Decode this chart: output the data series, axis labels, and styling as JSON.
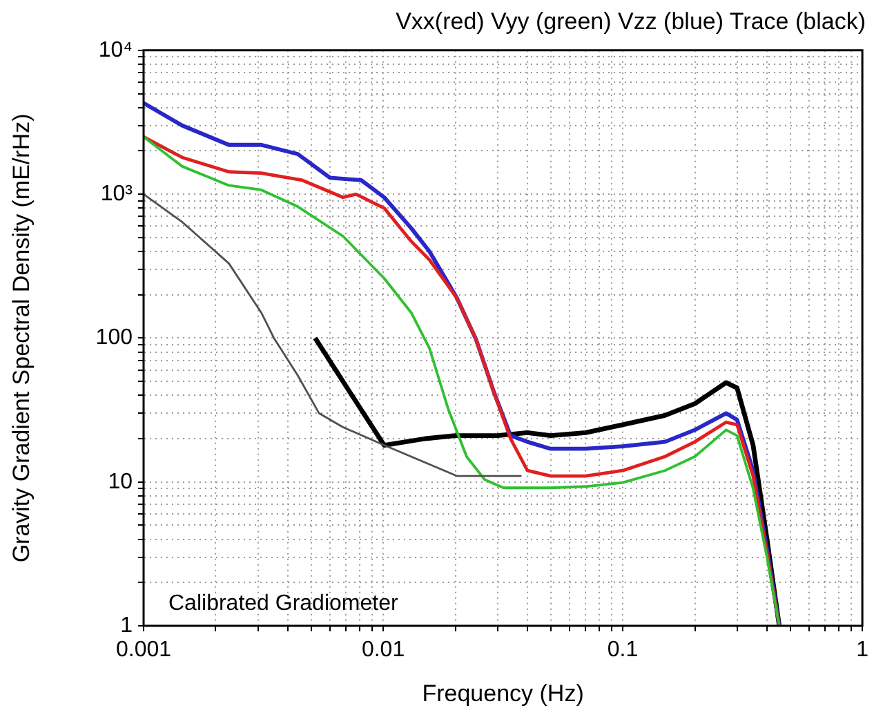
{
  "chart_data": {
    "type": "line",
    "title": "Vxx(red) Vyy (green) Vzz (blue) Trace (black)",
    "xlabel": "Frequency (Hz)",
    "ylabel": "Gravity Gradient Spectral Density (mE/rHz)",
    "annotations": [
      "Calibrated Gradiometer"
    ],
    "log": "xy",
    "grid": true,
    "marker": "none",
    "line_style": "solid",
    "xlim": [
      0.001,
      1
    ],
    "ylim": [
      1,
      10000
    ],
    "xticks": [
      0.001,
      {
        "value": 0.002,
        "label": null
      },
      {
        "value": 0.003,
        "label": null
      },
      {
        "value": 0.004,
        "label": null
      },
      {
        "value": 0.005,
        "label": null
      },
      {
        "value": 0.006,
        "label": null
      },
      {
        "value": 0.007,
        "label": null
      },
      {
        "value": 0.008,
        "label": null
      },
      {
        "value": 0.009,
        "label": null
      },
      0.01,
      {
        "value": 0.02,
        "label": null
      },
      {
        "value": 0.03,
        "label": null
      },
      {
        "value": 0.04,
        "label": null
      },
      {
        "value": 0.05,
        "label": null
      },
      {
        "value": 0.06,
        "label": null
      },
      {
        "value": 0.07,
        "label": null
      },
      {
        "value": 0.08,
        "label": null
      },
      {
        "value": 0.09,
        "label": null
      },
      0.1,
      {
        "value": 0.2,
        "label": null
      },
      {
        "value": 0.3,
        "label": null
      },
      {
        "value": 0.4,
        "label": null
      },
      {
        "value": 0.5,
        "label": null
      },
      {
        "value": 0.6,
        "label": null
      },
      {
        "value": 0.7,
        "label": null
      },
      {
        "value": 0.8,
        "label": null
      },
      {
        "value": 0.9,
        "label": null
      },
      1
    ],
    "yticks": [
      1,
      {
        "value": 2,
        "label": null
      },
      {
        "value": 3,
        "label": null
      },
      {
        "value": 4,
        "label": null
      },
      {
        "value": 5,
        "label": null
      },
      {
        "value": 6,
        "label": null
      },
      {
        "value": 7,
        "label": null
      },
      {
        "value": 8,
        "label": null
      },
      {
        "value": 9,
        "label": null
      },
      10,
      {
        "value": 20,
        "label": null
      },
      {
        "value": 30,
        "label": null
      },
      {
        "value": 40,
        "label": null
      },
      {
        "value": 50,
        "label": null
      },
      {
        "value": 60,
        "label": null
      },
      {
        "value": 70,
        "label": null
      },
      {
        "value": 80,
        "label": null
      },
      {
        "value": 90,
        "label": null
      },
      100,
      {
        "value": 200,
        "label": null
      },
      {
        "value": 300,
        "label": null
      },
      {
        "value": 400,
        "label": null
      },
      {
        "value": 500,
        "label": null
      },
      {
        "value": 600,
        "label": null
      },
      {
        "value": 700,
        "label": null
      },
      {
        "value": 800,
        "label": null
      },
      {
        "value": 900,
        "label": null
      },
      {
        "value": 1000,
        "label": "10³"
      },
      {
        "value": 2000,
        "label": null
      },
      {
        "value": 3000,
        "label": null
      },
      {
        "value": 4000,
        "label": null
      },
      {
        "value": 5000,
        "label": null
      },
      {
        "value": 6000,
        "label": null
      },
      {
        "value": 7000,
        "label": null
      },
      {
        "value": 8000,
        "label": null
      },
      {
        "value": 9000,
        "label": null
      },
      {
        "value": 10000,
        "label": "10⁴"
      }
    ],
    "series": [
      {
        "color": "#505050",
        "x": [
          0.001,
          0.00145,
          0.00227,
          0.0031,
          0.0035,
          0.0044,
          0.0054,
          0.0068,
          0.0101,
          0.0203,
          0.0378
        ],
        "values": [
          1000,
          640,
          330,
          150,
          100,
          55,
          30,
          24,
          18,
          11,
          11
        ]
      },
      {
        "color": "#30c030",
        "x": [
          0.001,
          0.00145,
          0.00227,
          0.0031,
          0.0044,
          0.0068,
          0.0101,
          0.0131,
          0.0156,
          0.0187,
          0.0223,
          0.0265,
          0.0318,
          0.05,
          0.07,
          0.1,
          0.15,
          0.2,
          0.27,
          0.3,
          0.35,
          0.4,
          0.45
        ],
        "values": [
          2500,
          1560,
          1150,
          1070,
          820,
          510,
          260,
          150,
          85,
          32,
          15,
          10.4,
          9.1,
          9.1,
          9.3,
          9.9,
          12,
          15,
          23,
          21,
          9,
          3,
          1
        ]
      },
      {
        "color": "#e02020",
        "x": [
          0.001,
          0.00145,
          0.00227,
          0.0031,
          0.0046,
          0.0068,
          0.0077,
          0.0101,
          0.0131,
          0.0156,
          0.0203,
          0.0244,
          0.029,
          0.034,
          0.04,
          0.05,
          0.07,
          0.1,
          0.15,
          0.2,
          0.27,
          0.3,
          0.35,
          0.4,
          0.45
        ],
        "values": [
          2500,
          1800,
          1430,
          1400,
          1250,
          950,
          1000,
          800,
          470,
          350,
          190,
          98,
          42,
          20,
          12,
          11,
          11,
          12,
          15,
          19,
          26,
          25,
          11,
          3.2,
          1
        ]
      },
      {
        "color": "#2828c8",
        "x": [
          0.001,
          0.00145,
          0.00227,
          0.0031,
          0.0044,
          0.006,
          0.0081,
          0.0101,
          0.0131,
          0.0156,
          0.0203,
          0.0244,
          0.029,
          0.034,
          0.04,
          0.05,
          0.07,
          0.1,
          0.15,
          0.2,
          0.27,
          0.3,
          0.35,
          0.4,
          0.45
        ],
        "values": [
          4300,
          3000,
          2200,
          2200,
          1900,
          1300,
          1250,
          950,
          580,
          400,
          190,
          98,
          42,
          21,
          19,
          17,
          17,
          17.7,
          19,
          23,
          30,
          27,
          12,
          3.4,
          1
        ]
      },
      {
        "color": "#000000",
        "x": [
          0.0052,
          0.0072,
          0.0101,
          0.015,
          0.02,
          0.03,
          0.04,
          0.05,
          0.07,
          0.1,
          0.15,
          0.2,
          0.27,
          0.3,
          0.35,
          0.4,
          0.45
        ],
        "values": [
          100,
          43,
          18,
          20,
          21,
          21,
          22,
          21,
          22,
          25,
          29,
          35,
          49,
          45,
          18,
          4,
          1
        ]
      }
    ]
  }
}
